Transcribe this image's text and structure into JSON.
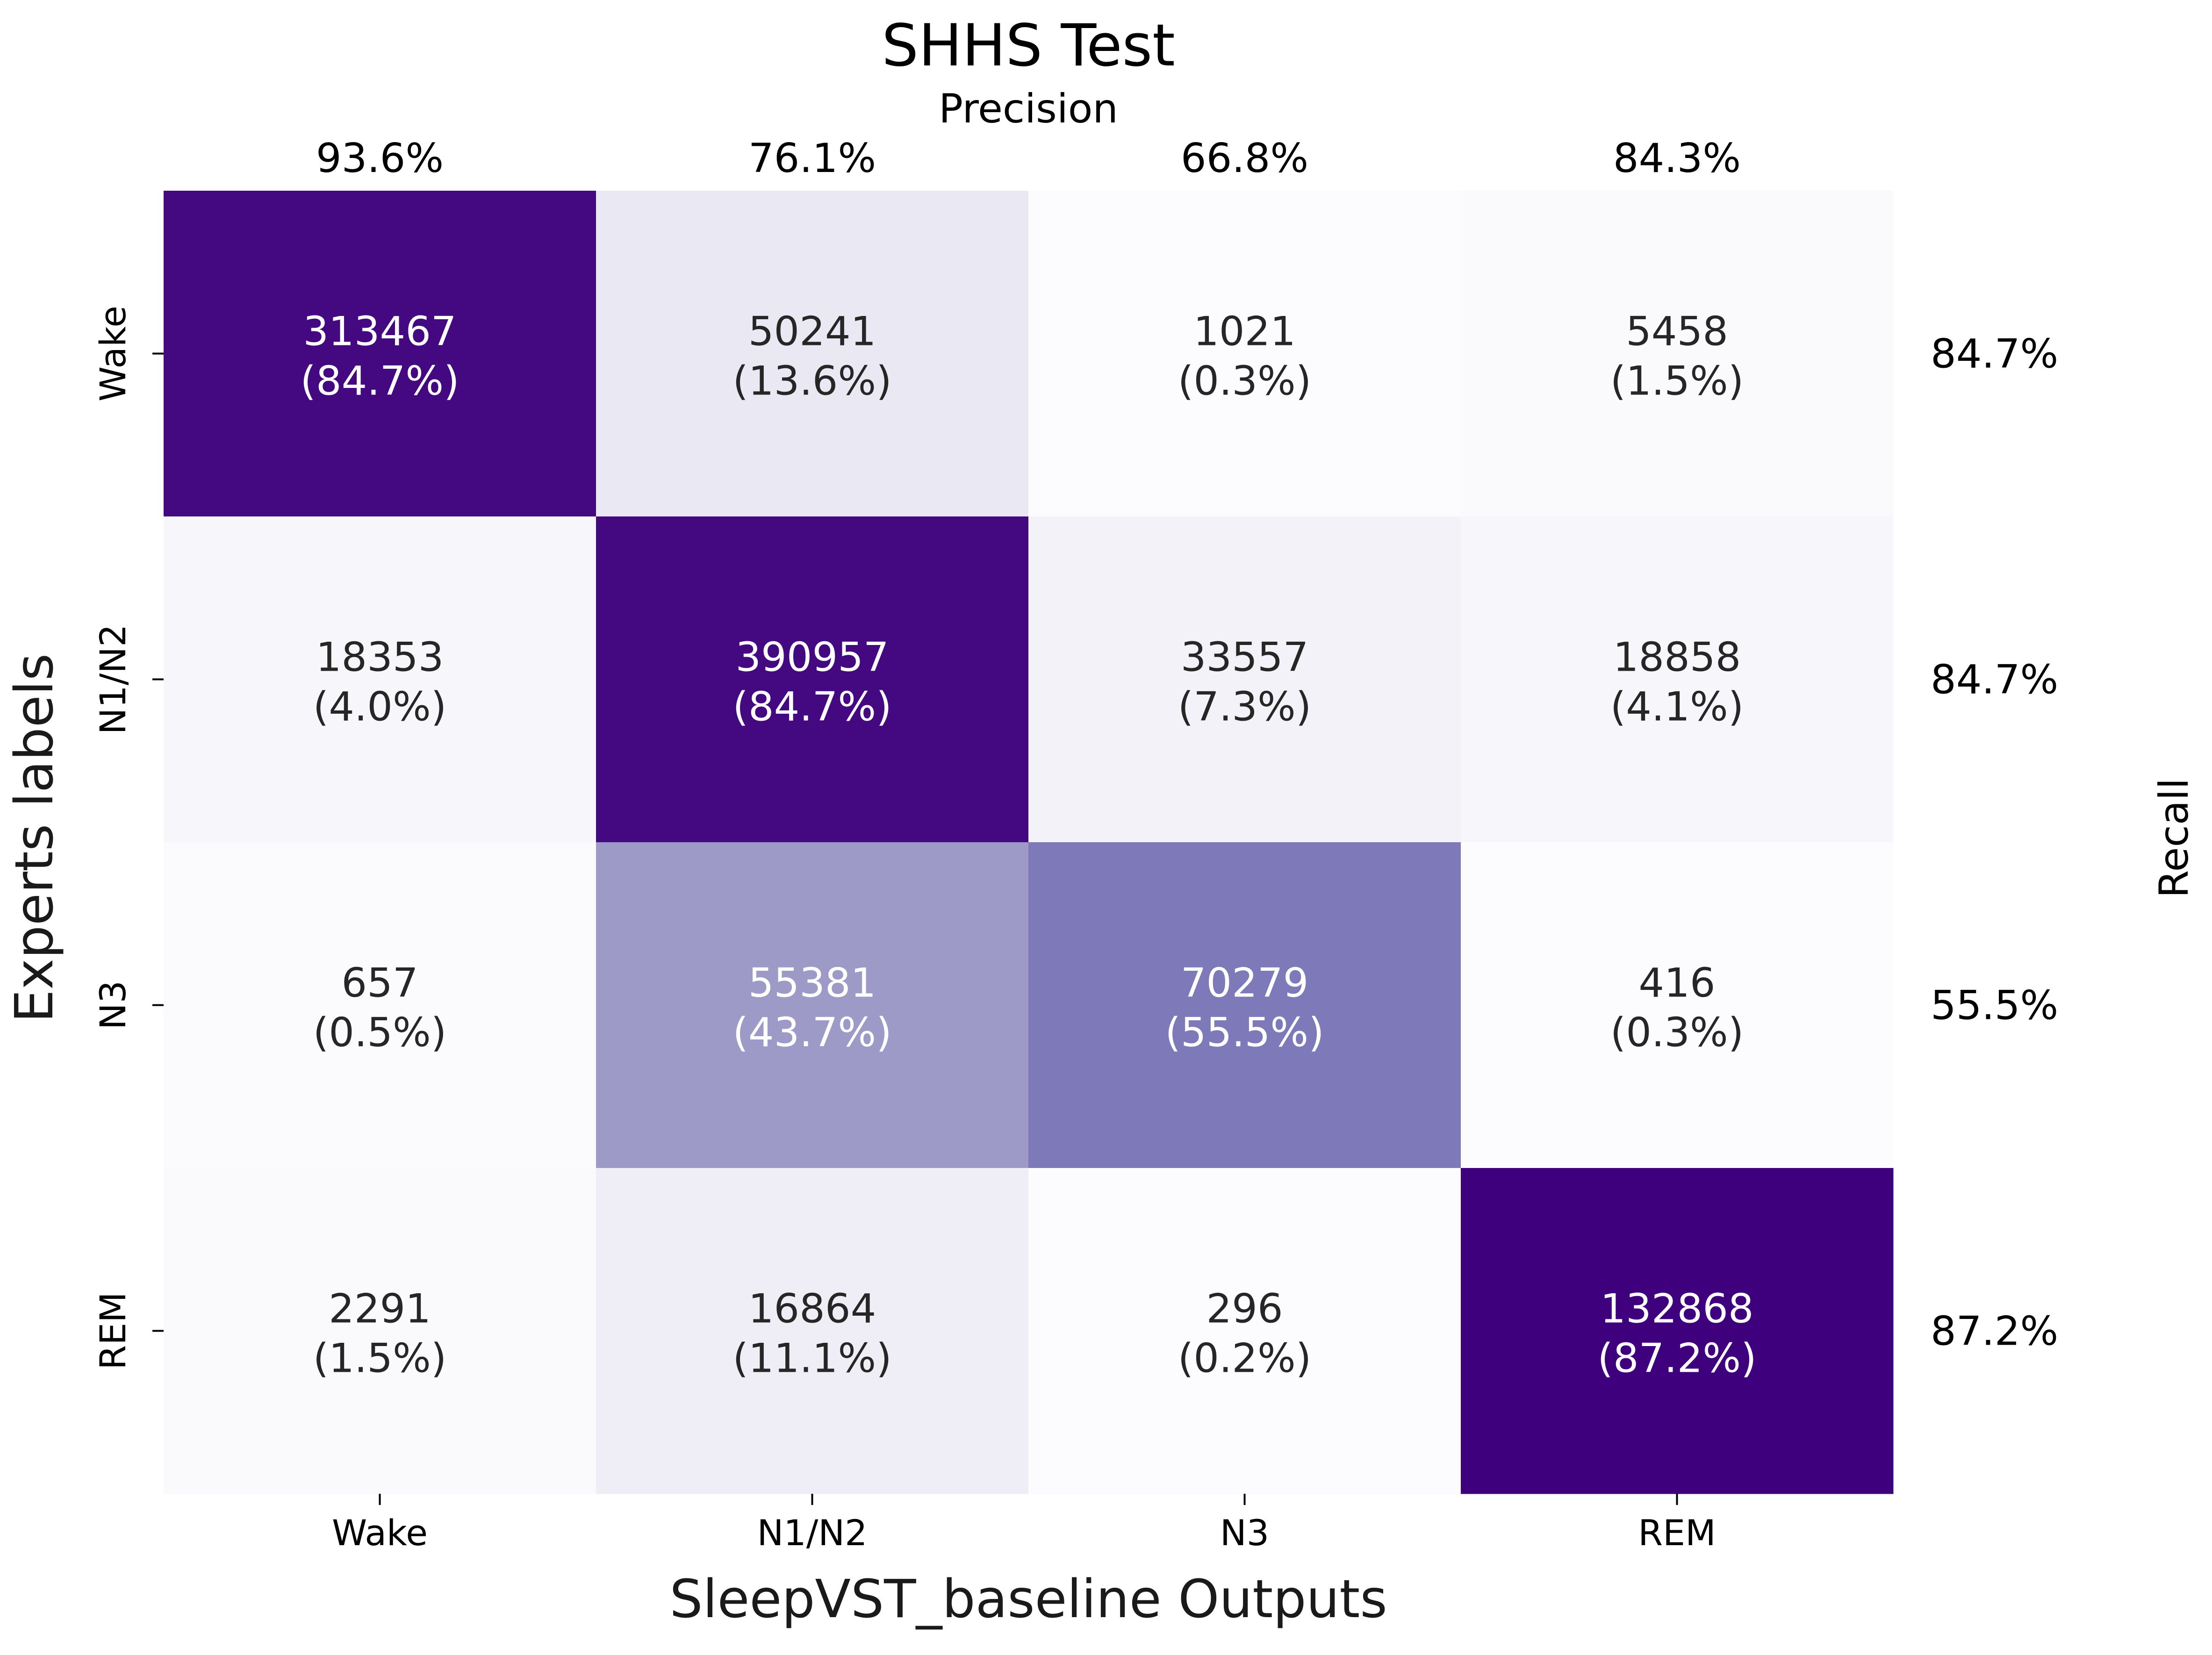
{
  "chart_data": {
    "type": "heatmap",
    "title": "SHHS Test",
    "xlabel": "SleepVST_baseline Outputs",
    "ylabel": "Experts labels",
    "top_label": "Precision",
    "right_label": "Recall",
    "x_categories": [
      "Wake",
      "N1/N2",
      "N3",
      "REM"
    ],
    "y_categories": [
      "Wake",
      "N1/N2",
      "N3",
      "REM"
    ],
    "counts": [
      [
        313467,
        50241,
        1021,
        5458
      ],
      [
        18353,
        390957,
        33557,
        18858
      ],
      [
        657,
        55381,
        70279,
        416
      ],
      [
        2291,
        16864,
        296,
        132868
      ]
    ],
    "percent_labels": [
      [
        "(84.7%)",
        "(13.6%)",
        "(0.3%)",
        "(1.5%)"
      ],
      [
        "(4.0%)",
        "(84.7%)",
        "(7.3%)",
        "(4.1%)"
      ],
      [
        "(0.5%)",
        "(43.7%)",
        "(55.5%)",
        "(0.3%)"
      ],
      [
        "(1.5%)",
        "(11.1%)",
        "(0.2%)",
        "(87.2%)"
      ]
    ],
    "row_normalized_percent": [
      [
        84.7,
        13.6,
        0.3,
        1.5
      ],
      [
        4.0,
        84.7,
        7.3,
        4.1
      ],
      [
        0.5,
        43.7,
        55.5,
        0.3
      ],
      [
        1.5,
        11.1,
        0.2,
        87.2
      ]
    ],
    "precision": [
      "93.6%",
      "76.1%",
      "66.8%",
      "84.3%"
    ],
    "recall": [
      "84.7%",
      "84.7%",
      "55.5%",
      "87.2%"
    ],
    "colormap": "Purples",
    "color_range": [
      0,
      87.2
    ],
    "colorbar": false,
    "grid": false
  }
}
